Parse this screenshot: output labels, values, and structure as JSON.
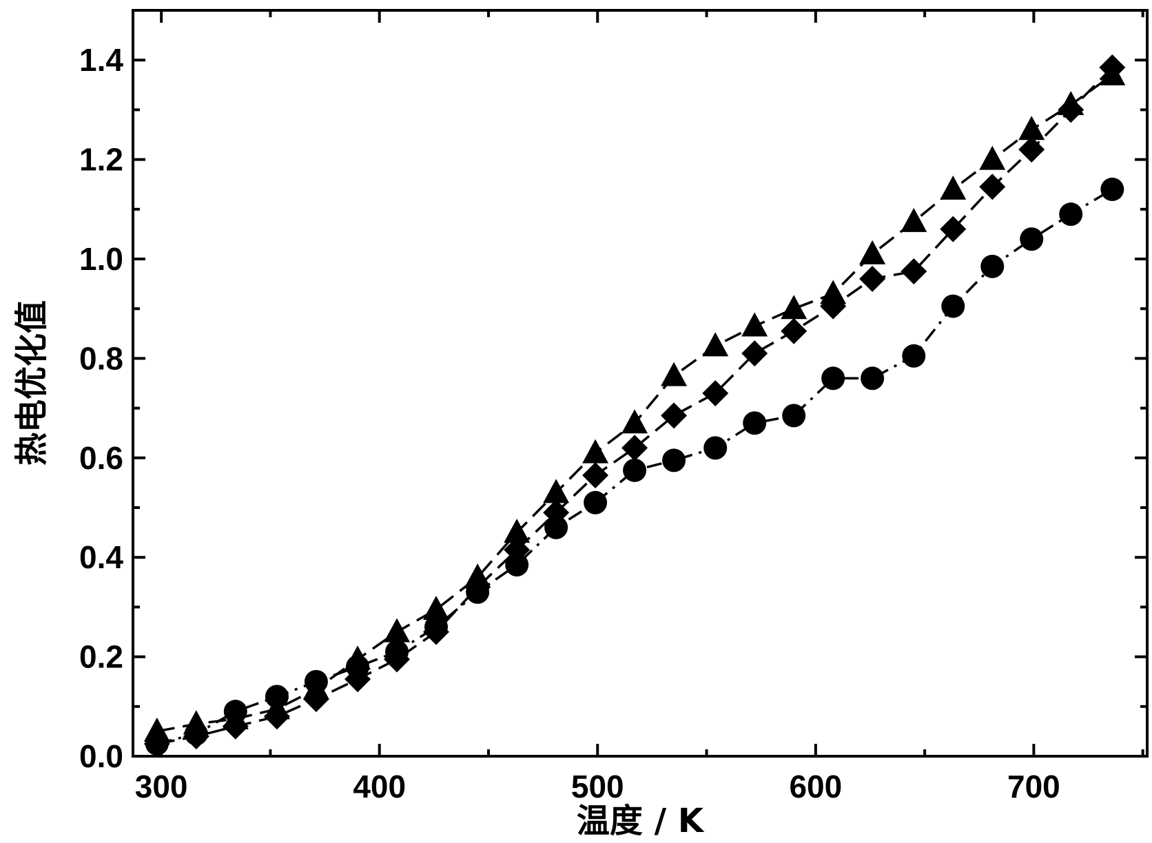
{
  "chart_data": {
    "type": "scatter",
    "xlabel": "温度 / K",
    "ylabel": "热电优化值",
    "xlim": [
      287,
      752
    ],
    "ylim": [
      0,
      1.5
    ],
    "x_ticks": [
      300,
      400,
      500,
      600,
      700
    ],
    "x_tick_labels": [
      "300",
      "400",
      "500",
      "600",
      "700"
    ],
    "y_ticks": [
      0.0,
      0.2,
      0.4,
      0.6,
      0.8,
      1.0,
      1.2,
      1.4
    ],
    "y_tick_labels": [
      "0.0",
      "0.2",
      "0.4",
      "0.6",
      "0.8",
      "1.0",
      "1.2",
      "1.4"
    ],
    "grid": false,
    "legend": false,
    "colors": {
      "series": "#000000",
      "frame": "#000000",
      "background": "#ffffff"
    },
    "series": [
      {
        "marker": "circle",
        "line": "dash-dot",
        "x": [
          298,
          316,
          334,
          353,
          371,
          390,
          408,
          426,
          445,
          463,
          481,
          499,
          517,
          535,
          554,
          572,
          590,
          608,
          626,
          645,
          663,
          681,
          699,
          717,
          736
        ],
        "y": [
          0.025,
          0.045,
          0.09,
          0.12,
          0.15,
          0.18,
          0.21,
          0.26,
          0.33,
          0.385,
          0.46,
          0.51,
          0.575,
          0.595,
          0.62,
          0.67,
          0.685,
          0.76,
          0.76,
          0.805,
          0.905,
          0.985,
          1.04,
          1.09,
          1.14
        ]
      },
      {
        "marker": "diamond",
        "line": "dash",
        "x": [
          298,
          316,
          334,
          353,
          371,
          390,
          408,
          426,
          445,
          463,
          481,
          499,
          517,
          535,
          554,
          572,
          590,
          608,
          626,
          645,
          663,
          681,
          699,
          717,
          736
        ],
        "y": [
          0.025,
          0.04,
          0.06,
          0.08,
          0.115,
          0.155,
          0.195,
          0.25,
          0.34,
          0.415,
          0.49,
          0.565,
          0.62,
          0.685,
          0.73,
          0.81,
          0.855,
          0.905,
          0.96,
          0.975,
          1.06,
          1.145,
          1.22,
          1.3,
          1.385
        ]
      },
      {
        "marker": "triangle",
        "line": "dash",
        "x": [
          298,
          316,
          334,
          353,
          371,
          390,
          408,
          426,
          445,
          463,
          481,
          499,
          517,
          535,
          554,
          572,
          590,
          608,
          626,
          645,
          663,
          681,
          699,
          717,
          736
        ],
        "y": [
          0.05,
          0.065,
          0.075,
          0.095,
          0.135,
          0.195,
          0.25,
          0.295,
          0.36,
          0.45,
          0.53,
          0.61,
          0.67,
          0.765,
          0.825,
          0.865,
          0.9,
          0.93,
          1.01,
          1.075,
          1.14,
          1.2,
          1.26,
          1.31,
          1.37
        ]
      }
    ]
  }
}
